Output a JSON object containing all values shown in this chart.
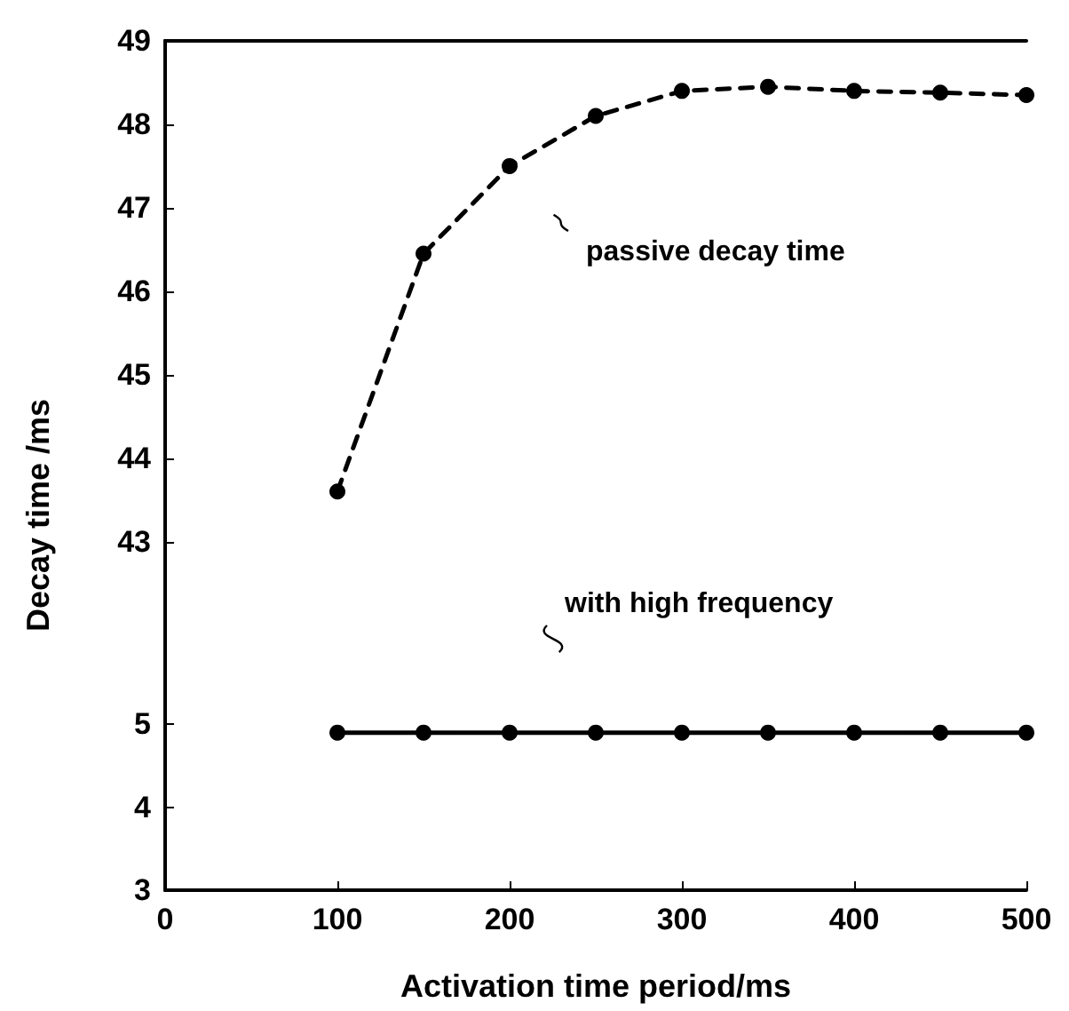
{
  "chart_data": [
    {
      "type": "line",
      "ylabel": "Decay time /ms",
      "x": [
        100,
        150,
        200,
        250,
        300,
        350,
        400,
        450,
        500
      ],
      "series": [
        {
          "color": "#000000",
          "line_style": "dashed",
          "values": [
            43.6,
            46.45,
            47.5,
            48.1,
            48.4,
            48.45,
            48.4,
            48.38,
            48.35
          ]
        }
      ],
      "xlim": [
        0,
        500
      ],
      "ylim": [
        42.4,
        49
      ],
      "yticks": [
        43,
        44,
        45,
        46,
        47,
        48,
        49
      ],
      "tick_labels": "y",
      "marker": "circle",
      "grid": false,
      "annotations": [
        "passive decay time"
      ]
    },
    {
      "type": "line",
      "xlabel": "Activation time period/ms",
      "x": [
        100,
        150,
        200,
        250,
        300,
        350,
        400,
        450,
        500
      ],
      "series": [
        {
          "color": "#000000",
          "line_style": "solid",
          "values": [
            4.9,
            4.9,
            4.9,
            4.9,
            4.9,
            4.9,
            4.9,
            4.9,
            4.9
          ]
        }
      ],
      "xlim": [
        0,
        500
      ],
      "xticks": [
        0,
        100,
        200,
        300,
        400,
        500
      ],
      "ylim": [
        3,
        6.6
      ],
      "yticks": [
        3,
        4,
        5
      ],
      "marker": "circle",
      "grid": false,
      "annotations": [
        "with high frequency"
      ]
    }
  ]
}
